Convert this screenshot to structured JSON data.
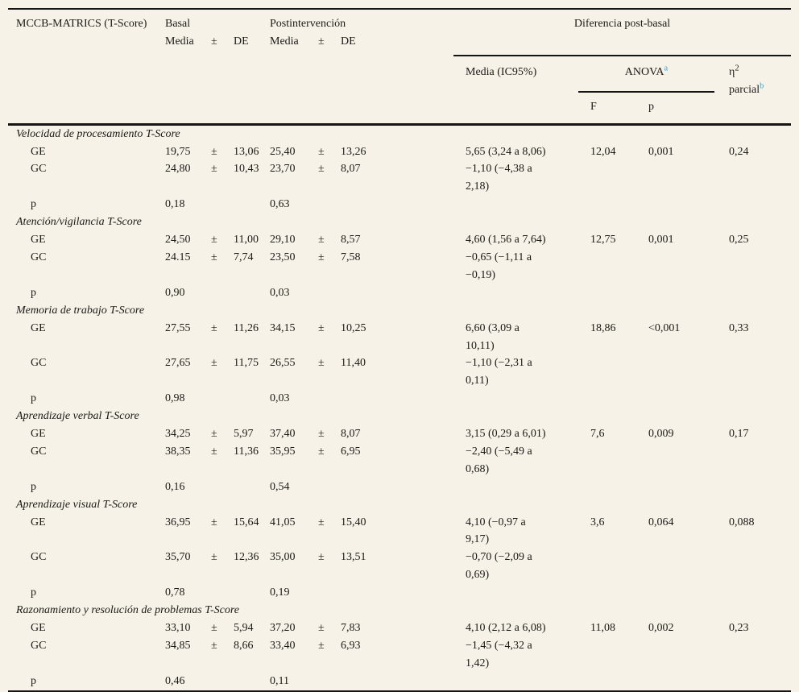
{
  "page": {
    "background_color": "#f6f2e7",
    "text_color": "#1c1a17",
    "rule_color": "#141414",
    "footnote_link_color": "#3ba2d8"
  },
  "table": {
    "header": {
      "col_group_label": "MCCB-MATRICS (T-Score)",
      "basal": {
        "label": "Basal",
        "media": "Media",
        "pm": "±",
        "de": "DE"
      },
      "post": {
        "label": "Postintervención",
        "media": "Media",
        "pm": "±",
        "de": "DE"
      },
      "diff": {
        "label": "Diferencia post-basal",
        "media_ic": "Media (IC95%)",
        "anova": "ANOVA",
        "anova_footnote": "a",
        "eta_symbol": "η",
        "eta_exponent": "2",
        "eta_word": "parcial",
        "eta_footnote": "b",
        "f": "F",
        "p": "p"
      }
    },
    "sections": [
      {
        "title": "Velocidad de procesamiento T-Score",
        "rows": [
          {
            "label": "GE",
            "basal_media": "19,75",
            "basal_pm": "±",
            "basal_de": "13,06",
            "post_media": "25,40",
            "post_pm": "±",
            "post_de": "13,26",
            "diff": "5,65 (3,24 a 8,06)",
            "f": "12,04",
            "p": "0,001",
            "eta": "0,24"
          },
          {
            "label": "GC",
            "basal_media": "24,80",
            "basal_pm": "±",
            "basal_de": "10,43",
            "post_media": "23,70",
            "post_pm": "±",
            "post_de": "8,07",
            "diff": "−1,10 (−4,38 a\n2,18)"
          },
          {
            "label": "p",
            "basal_media": "0,18",
            "post_media": "0,63"
          }
        ]
      },
      {
        "title": "Atención/vigilancia T-Score",
        "rows": [
          {
            "label": "GE",
            "basal_media": "24,50",
            "basal_pm": "±",
            "basal_de": "11,00",
            "post_media": "29,10",
            "post_pm": "±",
            "post_de": "8,57",
            "diff": "4,60 (1,56 a 7,64)",
            "f": "12,75",
            "p": "0,001",
            "eta": "0,25"
          },
          {
            "label": "GC",
            "basal_media": "24.15",
            "basal_pm": "±",
            "basal_de": "7,74",
            "post_media": "23,50",
            "post_pm": "±",
            "post_de": "7,58",
            "diff": "−0,65 (−1,11 a\n−0,19)"
          },
          {
            "label": "p",
            "basal_media": "0,90",
            "post_media": "0,03"
          }
        ]
      },
      {
        "title": "Memoria de trabajo T-Score",
        "rows": [
          {
            "label": "GE",
            "basal_media": "27,55",
            "basal_pm": "±",
            "basal_de": "11,26",
            "post_media": "34,15",
            "post_pm": "±",
            "post_de": "10,25",
            "diff": "6,60 (3,09 a\n10,11)",
            "f": "18,86",
            "p": "<0,001",
            "eta": "0,33"
          },
          {
            "label": "GC",
            "basal_media": "27,65",
            "basal_pm": "±",
            "basal_de": "11,75",
            "post_media": "26,55",
            "post_pm": "±",
            "post_de": "11,40",
            "diff": "−1,10 (−2,31 a\n0,11)"
          },
          {
            "label": "p",
            "basal_media": "0,98",
            "post_media": "0,03"
          }
        ]
      },
      {
        "title": "Aprendizaje verbal T-Score",
        "rows": [
          {
            "label": "GE",
            "basal_media": "34,25",
            "basal_pm": "±",
            "basal_de": "5,97",
            "post_media": "37,40",
            "post_pm": "±",
            "post_de": "8,07",
            "diff": "3,15 (0,29 a 6,01)",
            "f": "7,6",
            "p": "0,009",
            "eta": "0,17"
          },
          {
            "label": "GC",
            "basal_media": "38,35",
            "basal_pm": "±",
            "basal_de": "11,36",
            "post_media": "35,95",
            "post_pm": "±",
            "post_de": "6,95",
            "diff": "−2,40 (−5,49 a\n0,68)"
          },
          {
            "label": "p",
            "basal_media": "0,16",
            "post_media": "0,54"
          }
        ]
      },
      {
        "title": "Aprendizaje visual T-Score",
        "rows": [
          {
            "label": "GE",
            "basal_media": "36,95",
            "basal_pm": "±",
            "basal_de": "15,64",
            "post_media": "41,05",
            "post_pm": "±",
            "post_de": "15,40",
            "diff": "4,10 (−0,97 a\n9,17)",
            "f": "3,6",
            "p": "0,064",
            "eta": "0,088"
          },
          {
            "label": "GC",
            "basal_media": "35,70",
            "basal_pm": "±",
            "basal_de": "12,36",
            "post_media": "35,00",
            "post_pm": "±",
            "post_de": "13,51",
            "diff": "−0,70 (−2,09 a\n0,69)"
          },
          {
            "label": "p",
            "basal_media": "0,78",
            "post_media": "0,19"
          }
        ]
      },
      {
        "title": "Razonamiento y resolución de problemas T-Score",
        "rows": [
          {
            "label": "GE",
            "basal_media": "33,10",
            "basal_pm": "±",
            "basal_de": "5,94",
            "post_media": "37,20",
            "post_pm": "±",
            "post_de": "7,83",
            "diff": "4,10 (2,12 a 6,08)",
            "f": "11,08",
            "p": "0,002",
            "eta": "0,23"
          },
          {
            "label": "GC",
            "basal_media": "34,85",
            "basal_pm": "±",
            "basal_de": "8,66",
            "post_media": "33,40",
            "post_pm": "±",
            "post_de": "6,93",
            "diff": "−1,45 (−4,32 a\n1,42)"
          },
          {
            "label": "p",
            "basal_media": "0,46",
            "post_media": "0,11"
          }
        ]
      }
    ]
  }
}
